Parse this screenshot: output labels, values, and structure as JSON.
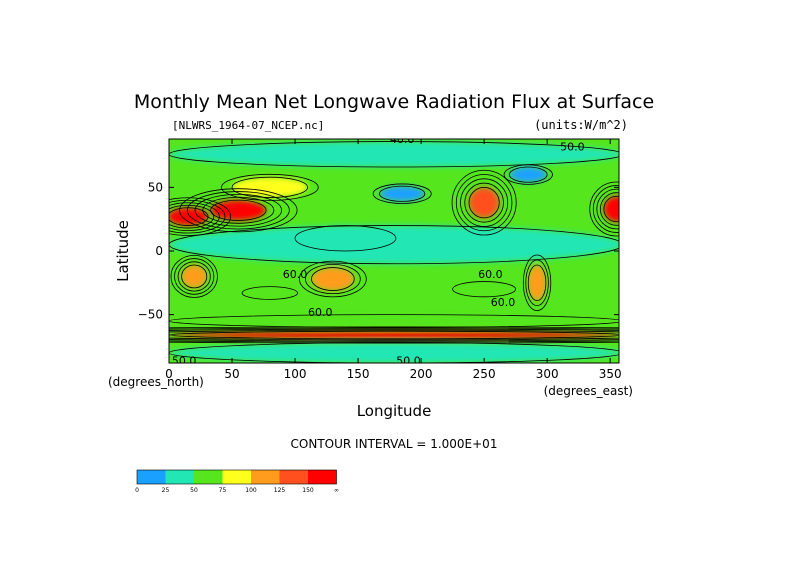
{
  "chart_data": {
    "type": "heatmap",
    "title": "Monthly Mean Net Longwave Radiation Flux at Surface",
    "dataset_label": "[NLWRS_1964-07_NCEP.nc]",
    "units_label": "(units:W/m^2)",
    "xlabel": "Longitude",
    "ylabel": "Latitude",
    "x_unit_label": "(degrees_east)",
    "y_unit_label": "(degrees_north)",
    "xlim": [
      0,
      357
    ],
    "ylim": [
      -88,
      88
    ],
    "x_ticks": [
      0,
      50,
      100,
      150,
      200,
      250,
      300,
      350
    ],
    "y_ticks": [
      50,
      0,
      -50
    ],
    "contour_interval_text": "CONTOUR INTERVAL = 1.000E+01",
    "contour_labels": [
      {
        "text": "40.0",
        "lon": 185,
        "lat": 88
      },
      {
        "text": "60.0",
        "lon": 100,
        "lat": -18
      },
      {
        "text": "60.0",
        "lon": 255,
        "lat": -18
      },
      {
        "text": "60.0",
        "lon": 265,
        "lat": -40
      },
      {
        "text": "60.0",
        "lon": 120,
        "lat": -48
      },
      {
        "text": "50.0",
        "lon": 320,
        "lat": 82
      },
      {
        "text": "50.0",
        "lon": 12,
        "lat": -86
      },
      {
        "text": "50.0",
        "lon": 190,
        "lat": -86
      }
    ],
    "colorbar": {
      "colors": [
        "#1aa0ff",
        "#22e6b4",
        "#55e61e",
        "#ffff1e",
        "#ff9c1e",
        "#ff501e",
        "#ff0000"
      ],
      "tick_labels": [
        "0",
        "25",
        "50",
        "75",
        "100",
        "125",
        "150",
        "∞"
      ]
    },
    "regions": [
      {
        "name": "arctic-band",
        "value": 40,
        "lon": 180,
        "lat": 76,
        "rx": 180,
        "ry": 10
      },
      {
        "name": "north-america-west",
        "value": 140,
        "lon": 250,
        "lat": 38,
        "rx": 12,
        "ry": 12
      },
      {
        "name": "north-africa-west",
        "value": 160,
        "lon": 15,
        "lat": 27,
        "rx": 16,
        "ry": 7
      },
      {
        "name": "middle-east",
        "value": 150,
        "lon": 55,
        "lat": 32,
        "rx": 22,
        "ry": 8
      },
      {
        "name": "central-asia",
        "value": 85,
        "lon": 80,
        "lat": 50,
        "rx": 30,
        "ry": 8
      },
      {
        "name": "mexico-desert",
        "value": 150,
        "lon": 355,
        "lat": 33,
        "rx": 10,
        "ry": 10
      },
      {
        "name": "north-pacific-low",
        "value": 15,
        "lon": 185,
        "lat": 45,
        "rx": 18,
        "ry": 6
      },
      {
        "name": "north-atlantic-low",
        "value": 15,
        "lon": 285,
        "lat": 60,
        "rx": 15,
        "ry": 6
      },
      {
        "name": "tropical-ocean",
        "value": 35,
        "lon": 180,
        "lat": 5,
        "rx": 180,
        "ry": 15
      },
      {
        "name": "west-pacific-warm",
        "value": 30,
        "lon": 140,
        "lat": 10,
        "rx": 40,
        "ry": 10
      },
      {
        "name": "south-africa",
        "value": 120,
        "lon": 20,
        "lat": -20,
        "rx": 10,
        "ry": 9
      },
      {
        "name": "australia",
        "value": 110,
        "lon": 130,
        "lat": -22,
        "rx": 17,
        "ry": 9
      },
      {
        "name": "south-america",
        "value": 110,
        "lon": 292,
        "lat": -25,
        "rx": 7,
        "ry": 14
      },
      {
        "name": "south-indian-ocean",
        "value": 70,
        "lon": 80,
        "lat": -33,
        "rx": 22,
        "ry": 5
      },
      {
        "name": "south-pacific-east",
        "value": 70,
        "lon": 250,
        "lat": -30,
        "rx": 25,
        "ry": 6
      },
      {
        "name": "southern-ocean",
        "value": 70,
        "lon": 180,
        "lat": -55,
        "rx": 180,
        "ry": 5
      },
      {
        "name": "southern-ocean-high",
        "value": 160,
        "lon": 180,
        "lat": -66,
        "rx": 180,
        "ry": 3
      },
      {
        "name": "antarctica",
        "value": 40,
        "lon": 180,
        "lat": -80,
        "rx": 180,
        "ry": 8
      }
    ]
  }
}
